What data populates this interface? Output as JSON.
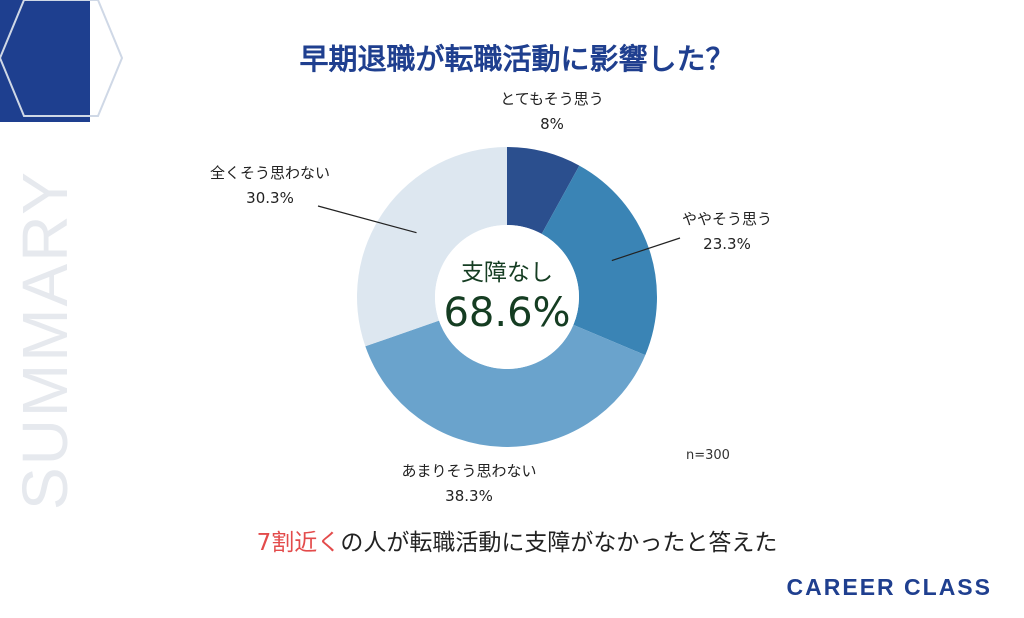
{
  "title": "早期退職が転職活動に影響した？",
  "side_text": "SUMMARY",
  "center": {
    "label": "支障なし",
    "value": "68.6%"
  },
  "sample_size": "n=300",
  "caption": {
    "highlight": "7割近く",
    "rest": "の人が転職活動に支障がなかったと答えた"
  },
  "brand": "CAREER CLASS",
  "chart_data": {
    "type": "pie",
    "donut": true,
    "start_angle_deg": 0,
    "direction": "clockwise",
    "categories": [
      "とてもそう思う",
      "ややそう思う",
      "あまりそう思わない",
      "全くそう思わない"
    ],
    "values": [
      8,
      23.3,
      38.3,
      30.3
    ],
    "value_labels": [
      "8%",
      "23.3%",
      "38.3%",
      "30.3%"
    ],
    "colors": [
      "#2b4f8e",
      "#3a84b5",
      "#6aa3cc",
      "#dde7f0"
    ],
    "accent": "#1f3f8f",
    "highlight_color": "#e34b4b"
  }
}
